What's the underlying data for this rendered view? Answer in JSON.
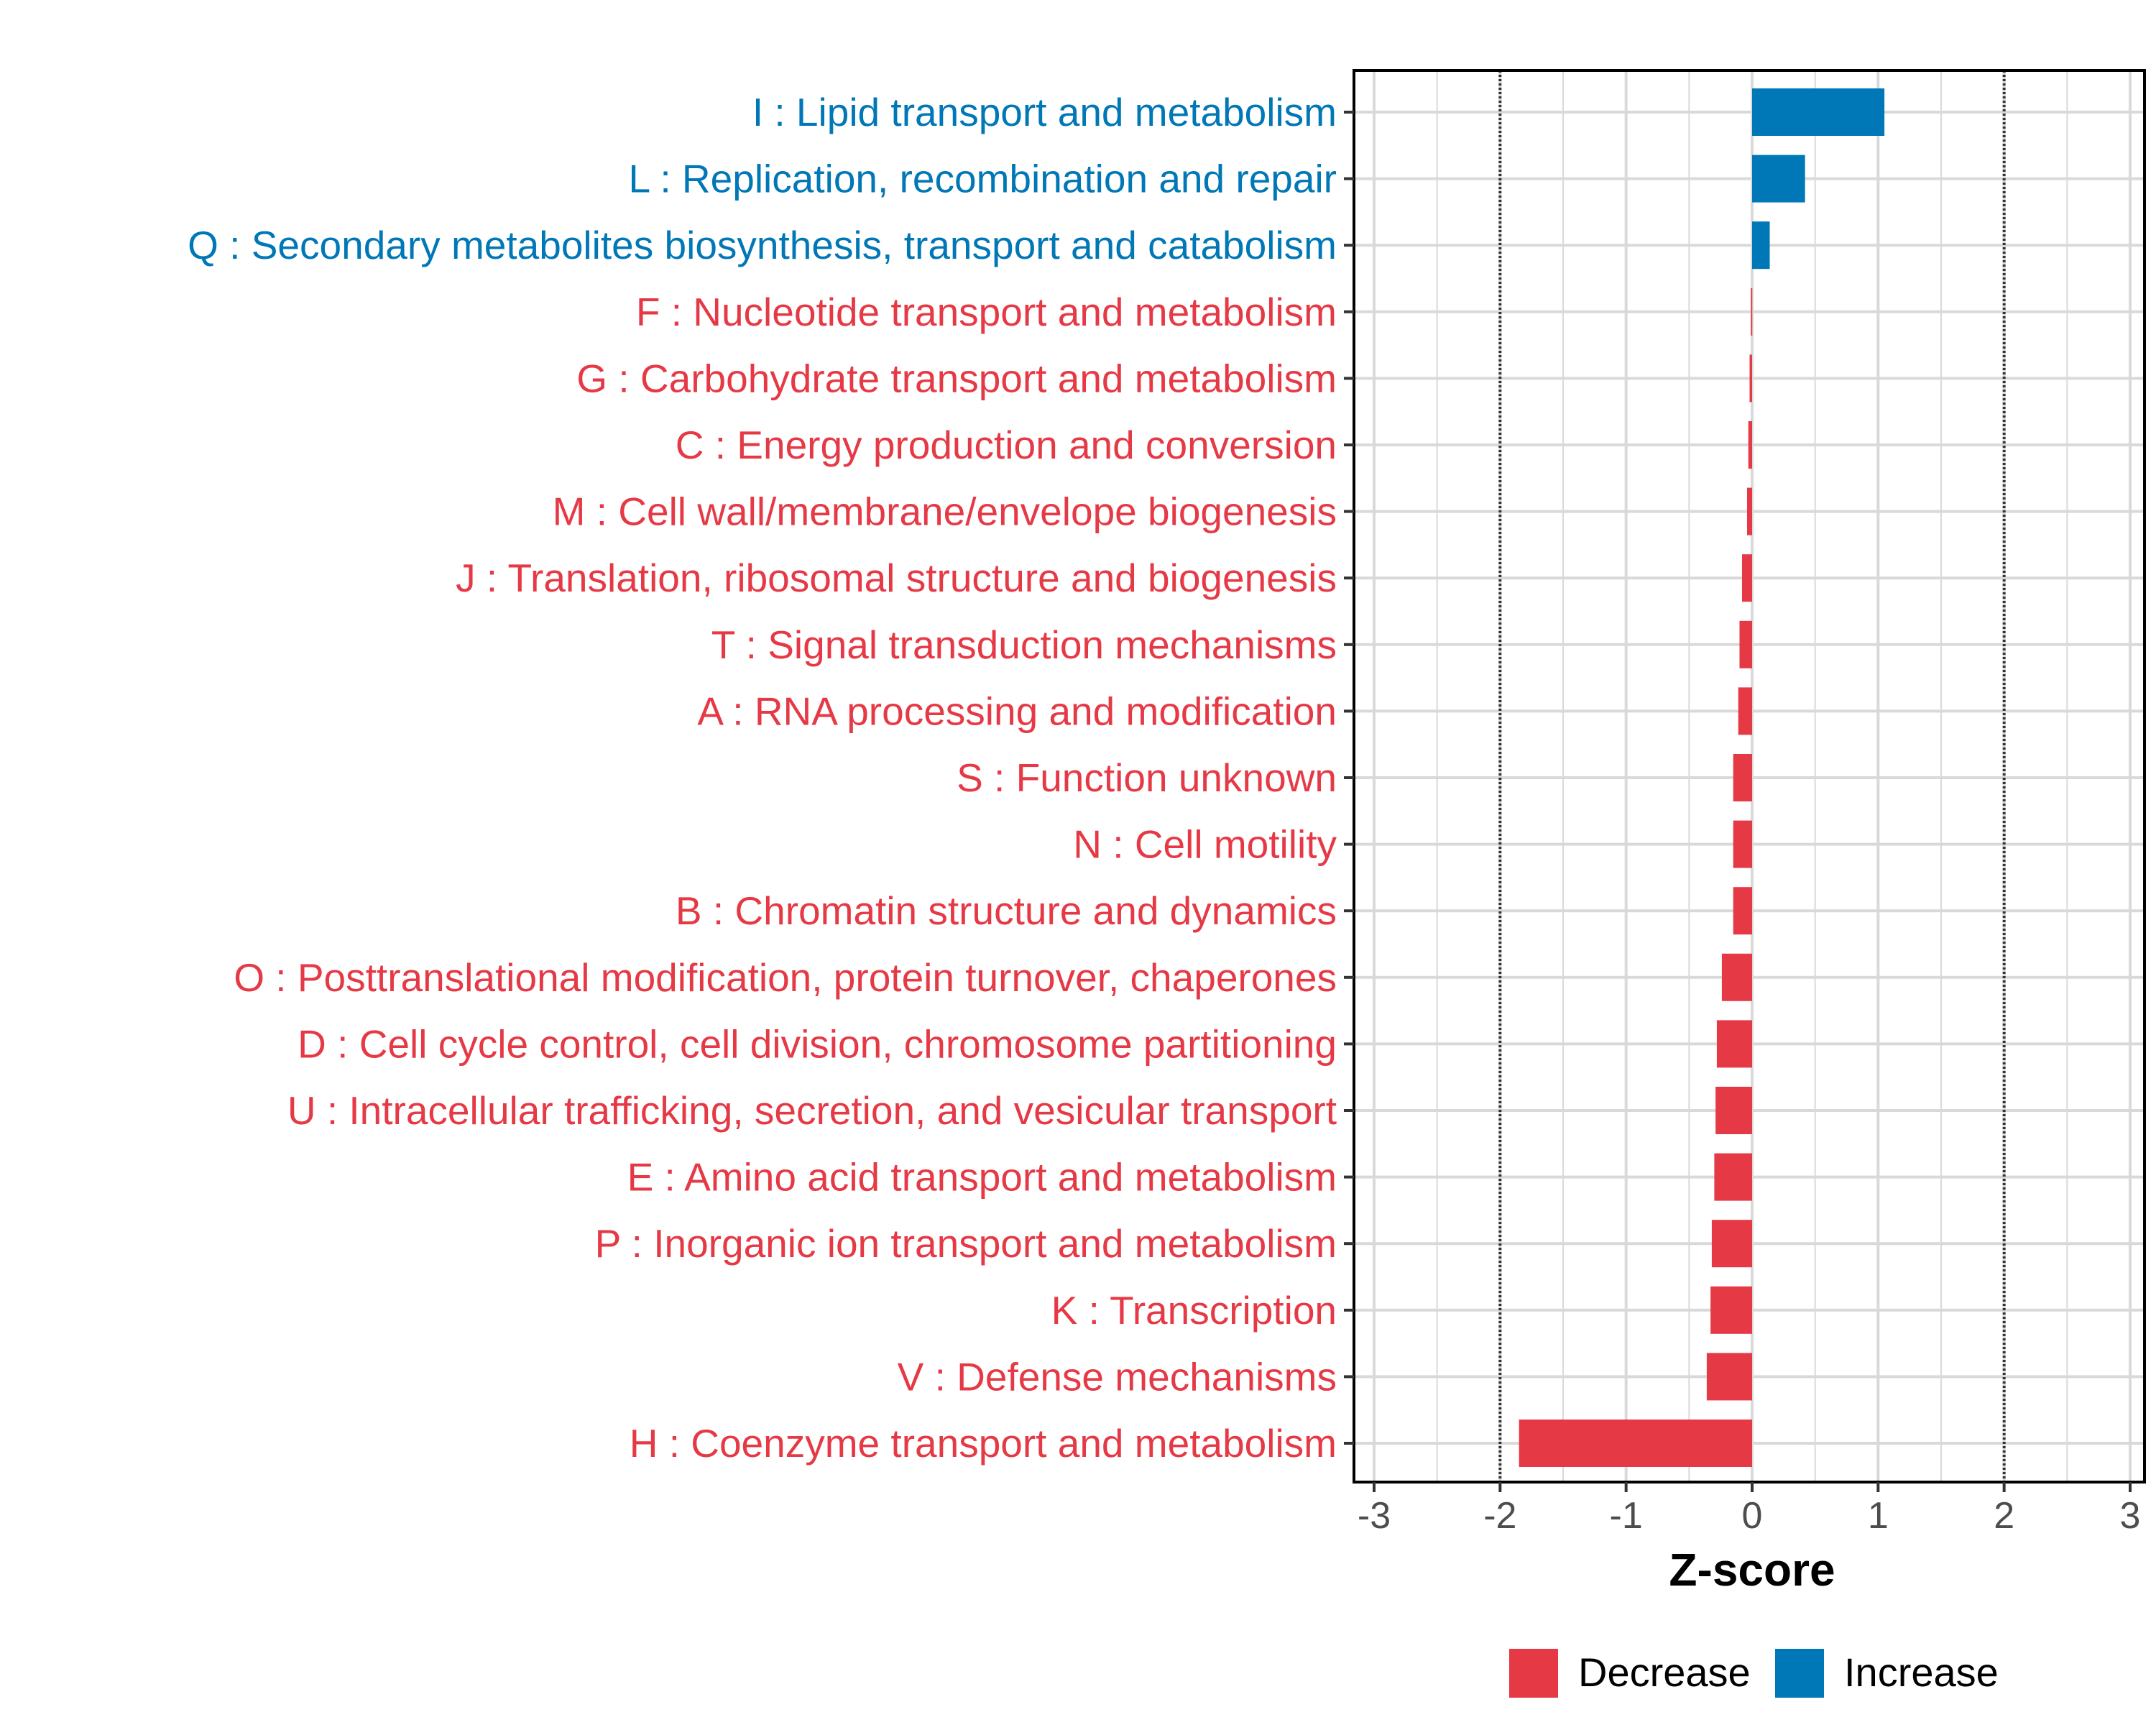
{
  "chart_data": {
    "type": "bar",
    "orientation": "horizontal",
    "xlabel": "Z-score",
    "xlim": [
      -3,
      3
    ],
    "xticks": [
      "-3",
      "-2",
      "-1",
      "0",
      "1",
      "2",
      "3"
    ],
    "reference_lines": [
      -2,
      2
    ],
    "categories": [
      "I : Lipid transport and metabolism",
      "L : Replication, recombination and repair",
      "Q : Secondary metabolites biosynthesis, transport and catabolism",
      "F : Nucleotide transport and metabolism",
      "G : Carbohydrate transport and metabolism",
      "C : Energy production and conversion",
      "M : Cell wall/membrane/envelope biogenesis",
      "J : Translation, ribosomal structure and biogenesis",
      "T : Signal transduction mechanisms",
      "A : RNA processing and modification",
      "S : Function unknown",
      "N : Cell motility",
      "B : Chromatin structure and dynamics",
      "O : Posttranslational modification, protein turnover, chaperones",
      "D : Cell cycle control, cell division, chromosome partitioning",
      "U : Intracellular trafficking, secretion, and vesicular transport",
      "E : Amino acid transport and metabolism",
      "P : Inorganic ion transport and metabolism",
      "K : Transcription",
      "V : Defense mechanisms",
      "H : Coenzyme transport and metabolism"
    ],
    "values": [
      1.05,
      0.42,
      0.14,
      -0.01,
      -0.02,
      -0.03,
      -0.04,
      -0.08,
      -0.1,
      -0.11,
      -0.15,
      -0.15,
      -0.15,
      -0.24,
      -0.28,
      -0.29,
      -0.3,
      -0.32,
      -0.33,
      -0.36,
      -1.85
    ],
    "groups": [
      "Increase",
      "Increase",
      "Increase",
      "Decrease",
      "Decrease",
      "Decrease",
      "Decrease",
      "Decrease",
      "Decrease",
      "Decrease",
      "Decrease",
      "Decrease",
      "Decrease",
      "Decrease",
      "Decrease",
      "Decrease",
      "Decrease",
      "Decrease",
      "Decrease",
      "Decrease",
      "Decrease"
    ],
    "legend": {
      "position": "bottom",
      "items": [
        {
          "label": "Decrease",
          "color": "#E63946"
        },
        {
          "label": "Increase",
          "color": "#0077B6"
        }
      ]
    },
    "colors": {
      "Decrease": "#E63946",
      "Increase": "#0077B6",
      "grid": "#d9d9d9",
      "reference_line": "#333333",
      "panel_border": "#000000"
    }
  }
}
